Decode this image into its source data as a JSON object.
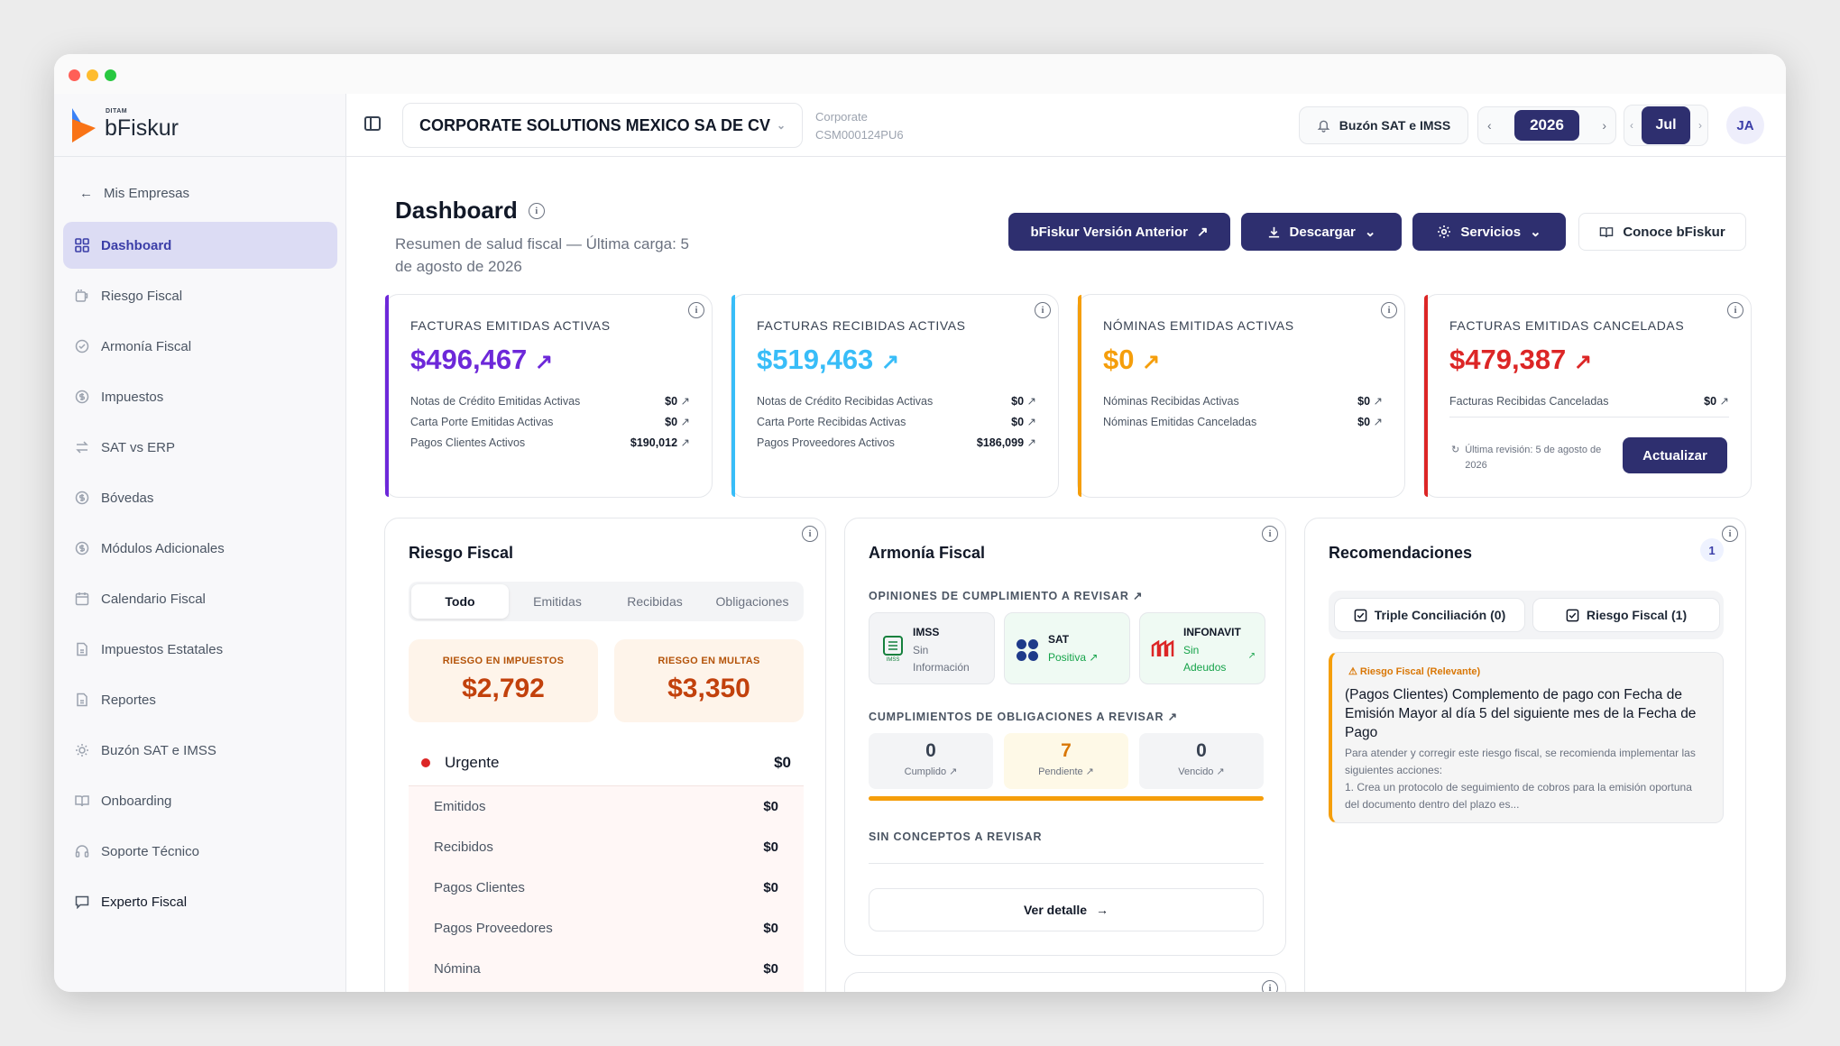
{
  "app": {
    "brand": "bFiskur",
    "brand_small": "DITAM"
  },
  "sidebar": {
    "back_label": "Mis Empresas",
    "items": [
      {
        "label": "Dashboard",
        "icon": "grid-icon"
      },
      {
        "label": "Riesgo Fiscal",
        "icon": "mug-icon"
      },
      {
        "label": "Armonía Fiscal",
        "icon": "check-circle-icon"
      },
      {
        "label": "Impuestos",
        "icon": "dollar-circle-icon"
      },
      {
        "label": "SAT vs ERP",
        "icon": "swap-icon"
      },
      {
        "label": "Bóvedas",
        "icon": "dollar-circle-icon"
      },
      {
        "label": "Módulos Adicionales",
        "icon": "dollar-circle-icon"
      },
      {
        "label": "Calendario Fiscal",
        "icon": "calendar-icon"
      },
      {
        "label": "Impuestos Estatales",
        "icon": "document-icon"
      },
      {
        "label": "Reportes",
        "icon": "document-icon"
      },
      {
        "label": "Buzón SAT e IMSS",
        "icon": "bell-icon"
      },
      {
        "label": "Onboarding",
        "icon": "book-icon"
      },
      {
        "label": "Soporte Técnico",
        "icon": "headset-icon"
      },
      {
        "label": "Experto Fiscal",
        "icon": "chat-icon"
      }
    ]
  },
  "topbar": {
    "company": "CORPORATE SOLUTIONS MEXICO SA DE CV",
    "company_type": "Corporate",
    "rfc": "CSM000124PU6",
    "buzon_label": "Buzón SAT e IMSS",
    "year": "2026",
    "month": "Jul",
    "user_initials": "JA"
  },
  "header": {
    "title": "Dashboard",
    "subtitle": "Resumen de salud fiscal — Última carga: 5 de agosto de 2026",
    "btn_version": "bFiskur Versión Anterior",
    "btn_download": "Descargar",
    "btn_services": "Servicios",
    "btn_conoce": "Conoce bFiskur"
  },
  "stats": [
    {
      "title": "FACTURAS EMITIDAS ACTIVAS",
      "value": "$496,467",
      "color": "#6d28d9",
      "rows": [
        {
          "label": "Notas de Crédito Emitidas Activas",
          "value": "$0"
        },
        {
          "label": "Carta Porte Emitidas Activas",
          "value": "$0"
        },
        {
          "label": "Pagos Clientes Activos",
          "value": "$190,012"
        }
      ]
    },
    {
      "title": "FACTURAS RECIBIDAS ACTIVAS",
      "value": "$519,463",
      "color": "#38bdf8",
      "rows": [
        {
          "label": "Notas de Crédito Recibidas Activas",
          "value": "$0"
        },
        {
          "label": "Carta Porte Recibidas Activas",
          "value": "$0"
        },
        {
          "label": "Pagos Proveedores Activos",
          "value": "$186,099"
        }
      ]
    },
    {
      "title": "NÓMINAS EMITIDAS ACTIVAS",
      "value": "$0",
      "color": "#f59e0b",
      "rows": [
        {
          "label": "Nóminas Recibidas Activas",
          "value": "$0"
        },
        {
          "label": "Nóminas Emitidas Canceladas",
          "value": "$0"
        }
      ]
    },
    {
      "title": "FACTURAS EMITIDAS CANCELADAS",
      "value": "$479,387",
      "color": "#dc2626",
      "rows": [
        {
          "label": "Facturas Recibidas Canceladas",
          "value": "$0"
        }
      ],
      "review": "Última revisión: 5 de agosto de 2026",
      "update_label": "Actualizar"
    }
  ],
  "riesgo": {
    "title": "Riesgo Fiscal",
    "tabs": [
      "Todo",
      "Emitidas",
      "Recibidas",
      "Obligaciones"
    ],
    "impuestos_label": "RIESGO EN IMPUESTOS",
    "impuestos_value": "$2,792",
    "multas_label": "RIESGO EN MULTAS",
    "multas_value": "$3,350",
    "urgent_label": "Urgente",
    "urgent_value": "$0",
    "items": [
      {
        "label": "Emitidos",
        "value": "$0"
      },
      {
        "label": "Recibidos",
        "value": "$0"
      },
      {
        "label": "Pagos Clientes",
        "value": "$0"
      },
      {
        "label": "Pagos Proveedores",
        "value": "$0"
      },
      {
        "label": "Nómina",
        "value": "$0"
      }
    ]
  },
  "armonia": {
    "title": "Armonía Fiscal",
    "opiniones_label": "OPINIONES DE CUMPLIMIENTO A REVISAR",
    "opiniones": [
      {
        "name": "IMSS",
        "status": "Sin Información"
      },
      {
        "name": "SAT",
        "status": "Positiva"
      },
      {
        "name": "INFONAVIT",
        "status": "Sin Adeudos"
      }
    ],
    "cumplimientos_label": "CUMPLIMIENTOS DE OBLIGACIONES A REVISAR",
    "cumplimientos": [
      {
        "count": "0",
        "label": "Cumplido"
      },
      {
        "count": "7",
        "label": "Pendiente"
      },
      {
        "count": "0",
        "label": "Vencido"
      }
    ],
    "sin_conceptos": "SIN CONCEPTOS A REVISAR",
    "ver_detalle": "Ver detalle"
  },
  "recomendaciones": {
    "title": "Recomendaciones",
    "count": "1",
    "chip1": "Triple Conciliación (0)",
    "chip2": "Riesgo Fiscal (1)",
    "tag": "Riesgo Fiscal (Relevante)",
    "rec_title": "(Pagos Clientes) Complemento de pago con Fecha de Emisión Mayor al día 5 del siguiente mes de la Fecha de Pago",
    "rec_body": "Para atender y corregir este riesgo fiscal, se recomienda implementar las siguientes acciones:",
    "rec_step": "1. Crea un protocolo de seguimiento de cobros para la emisión oportuna del documento dentro del plazo es..."
  }
}
